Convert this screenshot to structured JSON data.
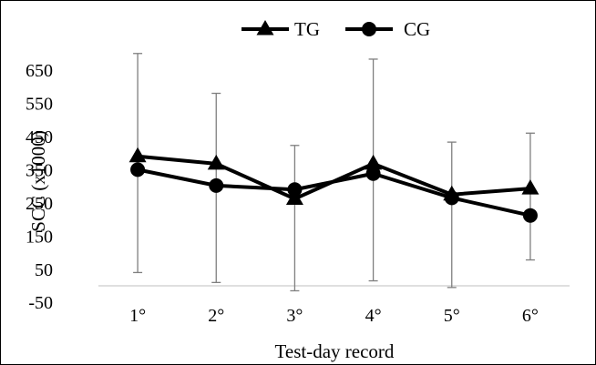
{
  "chart_data": {
    "type": "line",
    "categories": [
      "1°",
      "2°",
      "3°",
      "4°",
      "5°",
      "6°"
    ],
    "xlabel": "Test-day record",
    "ylabel": "SCC (x1000)",
    "ylim": [
      -50,
      650
    ],
    "yticks": [
      -50,
      50,
      150,
      250,
      350,
      450,
      550,
      650
    ],
    "grid": false,
    "legend_position": "top-center",
    "series": [
      {
        "name": "TG",
        "marker": "triangle",
        "color": "#000000",
        "values": [
          390,
          368,
          262,
          368,
          275,
          293
        ]
      },
      {
        "name": "CG",
        "marker": "circle",
        "color": "#000000",
        "values": [
          350,
          302,
          290,
          338,
          265,
          212
        ],
        "error_low": [
          40,
          10,
          -15,
          15,
          -5,
          78
        ],
        "error_high": [
          700,
          580,
          423,
          683,
          433,
          460
        ]
      }
    ],
    "error_bar_color": "#7f7f7f"
  }
}
